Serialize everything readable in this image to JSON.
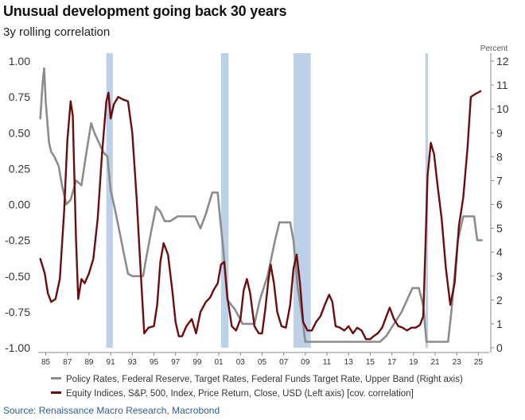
{
  "title": "Unusual development going back 30 years",
  "subtitle": "3y rolling correlation",
  "source": "Source: Renaissance Macro Research, Macrobond",
  "colors": {
    "policy": "#8c8c8c",
    "equity": "#6b0d0d",
    "recession": "#bcd0e8",
    "axis": "#888888"
  },
  "chart_data": {
    "type": "line",
    "x_range": [
      1984.3,
      2026.0
    ],
    "x_ticks": [
      "85",
      "87",
      "89",
      "91",
      "93",
      "95",
      "97",
      "99",
      "01",
      "03",
      "05",
      "07",
      "09",
      "11",
      "13",
      "15",
      "17",
      "19",
      "21",
      "23",
      "25"
    ],
    "x_tick_years": [
      1985,
      1987,
      1989,
      1991,
      1993,
      1995,
      1997,
      1999,
      2001,
      2003,
      2005,
      2007,
      2009,
      2011,
      2013,
      2015,
      2017,
      2019,
      2021,
      2023,
      2025
    ],
    "left_axis": {
      "ylim": [
        -1.0,
        1.0
      ],
      "ticks": [
        "1.00",
        "0.75",
        "0.50",
        "0.25",
        "0.00",
        "-0.25",
        "-0.50",
        "-0.75",
        "-1.00"
      ],
      "tick_values": [
        1.0,
        0.75,
        0.5,
        0.25,
        0.0,
        -0.25,
        -0.5,
        -0.75,
        -1.0
      ]
    },
    "right_axis": {
      "label": "Percent",
      "ylim": [
        0,
        12
      ],
      "ticks": [
        "12",
        "11",
        "10",
        "9",
        "8",
        "7",
        "6",
        "5",
        "4",
        "3",
        "2",
        "1",
        "0"
      ],
      "tick_values": [
        12,
        11,
        10,
        9,
        8,
        7,
        6,
        5,
        4,
        3,
        2,
        1,
        0
      ]
    },
    "recessions": [
      [
        1990.6,
        1991.2
      ],
      [
        2001.2,
        2001.9
      ],
      [
        2007.9,
        2009.5
      ],
      [
        2020.1,
        2020.35
      ]
    ],
    "series": [
      {
        "name": "Policy Rates, Federal Reserve, Target Rates, Federal Funds Target Rate, Upper Band (Right axis)",
        "axis": "right",
        "points": [
          [
            1984.5,
            9.6
          ],
          [
            1984.7,
            11.0
          ],
          [
            1984.85,
            11.7
          ],
          [
            1985.0,
            10.3
          ],
          [
            1985.3,
            8.6
          ],
          [
            1985.5,
            8.2
          ],
          [
            1985.8,
            8.0
          ],
          [
            1986.2,
            7.6
          ],
          [
            1986.5,
            6.8
          ],
          [
            1986.9,
            6.0
          ],
          [
            1987.3,
            6.2
          ],
          [
            1987.8,
            7.0
          ],
          [
            1988.3,
            6.8
          ],
          [
            1988.8,
            8.3
          ],
          [
            1989.2,
            9.4
          ],
          [
            1989.5,
            9.0
          ],
          [
            1989.8,
            8.7
          ],
          [
            1990.3,
            8.2
          ],
          [
            1990.7,
            8.0
          ],
          [
            1991.0,
            6.6
          ],
          [
            1991.4,
            5.8
          ],
          [
            1991.8,
            4.9
          ],
          [
            1992.2,
            4.0
          ],
          [
            1992.6,
            3.1
          ],
          [
            1993.0,
            3.0
          ],
          [
            1994.0,
            3.0
          ],
          [
            1994.3,
            3.8
          ],
          [
            1994.8,
            5.0
          ],
          [
            1995.2,
            5.9
          ],
          [
            1995.6,
            5.7
          ],
          [
            1996.0,
            5.3
          ],
          [
            1996.5,
            5.3
          ],
          [
            1997.2,
            5.5
          ],
          [
            1998.0,
            5.5
          ],
          [
            1998.8,
            5.5
          ],
          [
            1999.3,
            5.0
          ],
          [
            1999.8,
            5.6
          ],
          [
            2000.4,
            6.5
          ],
          [
            2000.9,
            6.5
          ],
          [
            2001.1,
            5.5
          ],
          [
            2001.4,
            4.2
          ],
          [
            2001.8,
            2.0
          ],
          [
            2002.5,
            1.6
          ],
          [
            2003.2,
            1.0
          ],
          [
            2004.3,
            1.0
          ],
          [
            2004.8,
            2.0
          ],
          [
            2005.5,
            3.0
          ],
          [
            2006.2,
            4.5
          ],
          [
            2006.6,
            5.25
          ],
          [
            2007.6,
            5.25
          ],
          [
            2007.9,
            4.5
          ],
          [
            2008.3,
            2.5
          ],
          [
            2008.8,
            1.0
          ],
          [
            2009.0,
            0.25
          ],
          [
            2015.9,
            0.25
          ],
          [
            2016.5,
            0.5
          ],
          [
            2017.2,
            1.0
          ],
          [
            2017.9,
            1.5
          ],
          [
            2018.4,
            2.0
          ],
          [
            2018.9,
            2.5
          ],
          [
            2019.5,
            2.5
          ],
          [
            2019.9,
            1.75
          ],
          [
            2020.2,
            0.25
          ],
          [
            2022.2,
            0.25
          ],
          [
            2022.5,
            1.5
          ],
          [
            2022.8,
            3.0
          ],
          [
            2023.1,
            4.5
          ],
          [
            2023.6,
            5.5
          ],
          [
            2024.6,
            5.5
          ],
          [
            2024.9,
            4.5
          ],
          [
            2025.3,
            4.5
          ]
        ]
      },
      {
        "name": "Equity Indices, S&P, 500, Index, Price Return, Close, USD (Left axis) [cov. correlation]",
        "axis": "left",
        "points": [
          [
            1984.5,
            -0.38
          ],
          [
            1984.9,
            -0.48
          ],
          [
            1985.2,
            -0.62
          ],
          [
            1985.5,
            -0.68
          ],
          [
            1985.9,
            -0.66
          ],
          [
            1986.3,
            -0.52
          ],
          [
            1986.7,
            -0.05
          ],
          [
            1987.0,
            0.45
          ],
          [
            1987.3,
            0.72
          ],
          [
            1987.5,
            0.62
          ],
          [
            1987.8,
            -0.25
          ],
          [
            1988.0,
            -0.66
          ],
          [
            1988.3,
            -0.52
          ],
          [
            1988.6,
            -0.55
          ],
          [
            1989.0,
            -0.48
          ],
          [
            1989.4,
            -0.38
          ],
          [
            1989.8,
            -0.1
          ],
          [
            1990.2,
            0.35
          ],
          [
            1990.6,
            0.72
          ],
          [
            1990.8,
            0.78
          ],
          [
            1991.0,
            0.6
          ],
          [
            1991.3,
            0.7
          ],
          [
            1991.7,
            0.75
          ],
          [
            1992.2,
            0.73
          ],
          [
            1992.6,
            0.72
          ],
          [
            1993.0,
            0.5
          ],
          [
            1993.4,
            0.05
          ],
          [
            1993.8,
            -0.5
          ],
          [
            1994.1,
            -0.9
          ],
          [
            1994.5,
            -0.86
          ],
          [
            1995.0,
            -0.85
          ],
          [
            1995.3,
            -0.7
          ],
          [
            1995.6,
            -0.4
          ],
          [
            1995.9,
            -0.27
          ],
          [
            1996.3,
            -0.35
          ],
          [
            1996.7,
            -0.6
          ],
          [
            1997.0,
            -0.82
          ],
          [
            1997.3,
            -0.92
          ],
          [
            1997.6,
            -0.92
          ],
          [
            1998.0,
            -0.85
          ],
          [
            1998.5,
            -0.8
          ],
          [
            1998.9,
            -0.9
          ],
          [
            1999.3,
            -0.75
          ],
          [
            1999.8,
            -0.68
          ],
          [
            2000.2,
            -0.65
          ],
          [
            2000.5,
            -0.6
          ],
          [
            2000.9,
            -0.55
          ],
          [
            2001.2,
            -0.42
          ],
          [
            2001.5,
            -0.4
          ],
          [
            2001.8,
            -0.65
          ],
          [
            2002.2,
            -0.85
          ],
          [
            2002.6,
            -0.88
          ],
          [
            2003.0,
            -0.8
          ],
          [
            2003.3,
            -0.6
          ],
          [
            2003.6,
            -0.52
          ],
          [
            2003.9,
            -0.62
          ],
          [
            2004.3,
            -0.85
          ],
          [
            2004.7,
            -0.9
          ],
          [
            2005.0,
            -0.9
          ],
          [
            2005.3,
            -0.73
          ],
          [
            2005.6,
            -0.52
          ],
          [
            2005.8,
            -0.42
          ],
          [
            2006.1,
            -0.55
          ],
          [
            2006.4,
            -0.75
          ],
          [
            2006.8,
            -0.85
          ],
          [
            2007.2,
            -0.86
          ],
          [
            2007.6,
            -0.7
          ],
          [
            2007.9,
            -0.45
          ],
          [
            2008.2,
            -0.35
          ],
          [
            2008.5,
            -0.55
          ],
          [
            2008.8,
            -0.82
          ],
          [
            2009.2,
            -0.88
          ],
          [
            2009.6,
            -0.88
          ],
          [
            2010.0,
            -0.82
          ],
          [
            2010.4,
            -0.78
          ],
          [
            2010.8,
            -0.7
          ],
          [
            2011.2,
            -0.63
          ],
          [
            2011.5,
            -0.68
          ],
          [
            2011.8,
            -0.85
          ],
          [
            2012.2,
            -0.86
          ],
          [
            2012.6,
            -0.88
          ],
          [
            2013.0,
            -0.85
          ],
          [
            2013.4,
            -0.9
          ],
          [
            2013.8,
            -0.86
          ],
          [
            2014.2,
            -0.88
          ],
          [
            2014.6,
            -0.94
          ],
          [
            2015.0,
            -0.94
          ],
          [
            2015.3,
            -0.92
          ],
          [
            2015.7,
            -0.9
          ],
          [
            2016.1,
            -0.86
          ],
          [
            2016.5,
            -0.78
          ],
          [
            2016.8,
            -0.72
          ],
          [
            2017.2,
            -0.8
          ],
          [
            2017.6,
            -0.85
          ],
          [
            2018.0,
            -0.86
          ],
          [
            2018.4,
            -0.88
          ],
          [
            2018.8,
            -0.86
          ],
          [
            2019.2,
            -0.86
          ],
          [
            2019.6,
            -0.84
          ],
          [
            2019.9,
            -0.78
          ],
          [
            2020.1,
            -0.3
          ],
          [
            2020.3,
            0.2
          ],
          [
            2020.6,
            0.43
          ],
          [
            2020.9,
            0.35
          ],
          [
            2021.2,
            0.15
          ],
          [
            2021.6,
            -0.1
          ],
          [
            2022.0,
            -0.45
          ],
          [
            2022.4,
            -0.7
          ],
          [
            2022.8,
            -0.55
          ],
          [
            2023.2,
            -0.15
          ],
          [
            2023.6,
            0.05
          ],
          [
            2024.0,
            0.4
          ],
          [
            2024.3,
            0.75
          ],
          [
            2024.7,
            0.77
          ],
          [
            2025.2,
            0.79
          ]
        ]
      }
    ]
  }
}
